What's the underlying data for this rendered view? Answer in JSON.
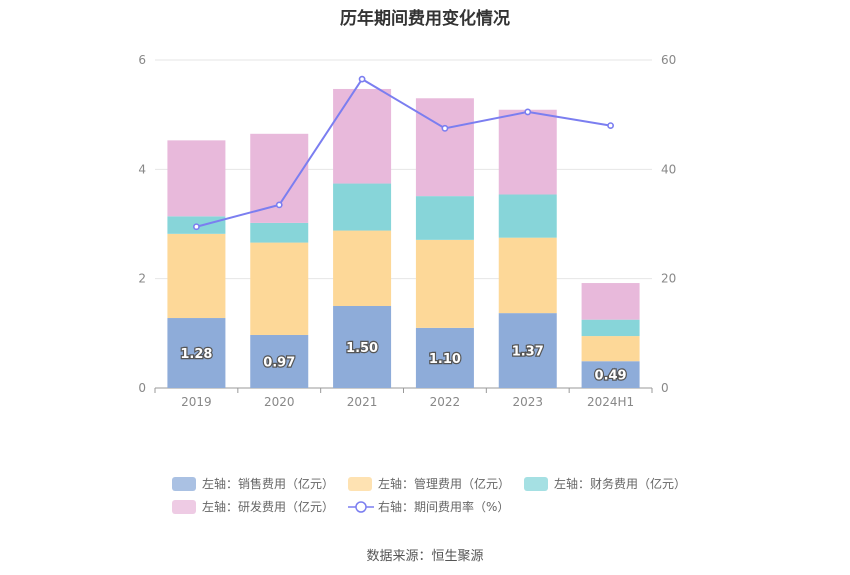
{
  "title": "历年期间费用变化情况",
  "source": "数据来源：恒生聚源",
  "chart_data": {
    "type": "bar",
    "stacked": true,
    "title": "历年期间费用变化情况",
    "categories": [
      "2019",
      "2020",
      "2021",
      "2022",
      "2023",
      "2024H1"
    ],
    "left_axis": {
      "min": 0,
      "max": 6,
      "ticks": [
        "0",
        "2",
        "4",
        "6"
      ]
    },
    "right_axis": {
      "min": 0,
      "max": 60,
      "ticks": [
        "0",
        "20",
        "40",
        "60"
      ]
    },
    "series": [
      {
        "name": "左轴：销售费用（亿元）",
        "axis": "left",
        "type": "bar",
        "color": "#8eacd9",
        "values": [
          1.28,
          0.97,
          1.5,
          1.1,
          1.37,
          0.49
        ],
        "labels": [
          "1.28",
          "0.97",
          "1.50",
          "1.10",
          "1.37",
          "0.49"
        ]
      },
      {
        "name": "左轴：管理费用（亿元）",
        "axis": "left",
        "type": "bar",
        "color": "#fdd898",
        "values": [
          1.54,
          1.69,
          1.38,
          1.61,
          1.38,
          0.46
        ]
      },
      {
        "name": "左轴：财务费用（亿元）",
        "axis": "left",
        "type": "bar",
        "color": "#87d5d9",
        "values": [
          0.32,
          0.36,
          0.86,
          0.8,
          0.79,
          0.3
        ]
      },
      {
        "name": "左轴：研发费用（亿元）",
        "axis": "left",
        "type": "bar",
        "color": "#e8b9db",
        "values": [
          1.39,
          1.63,
          1.73,
          1.79,
          1.55,
          0.67
        ]
      },
      {
        "name": "右轴：期间费用率（%）",
        "axis": "right",
        "type": "line",
        "color": "#7b7ef0",
        "values": [
          29.5,
          33.5,
          56.5,
          47.5,
          50.5,
          48.0
        ]
      }
    ]
  }
}
